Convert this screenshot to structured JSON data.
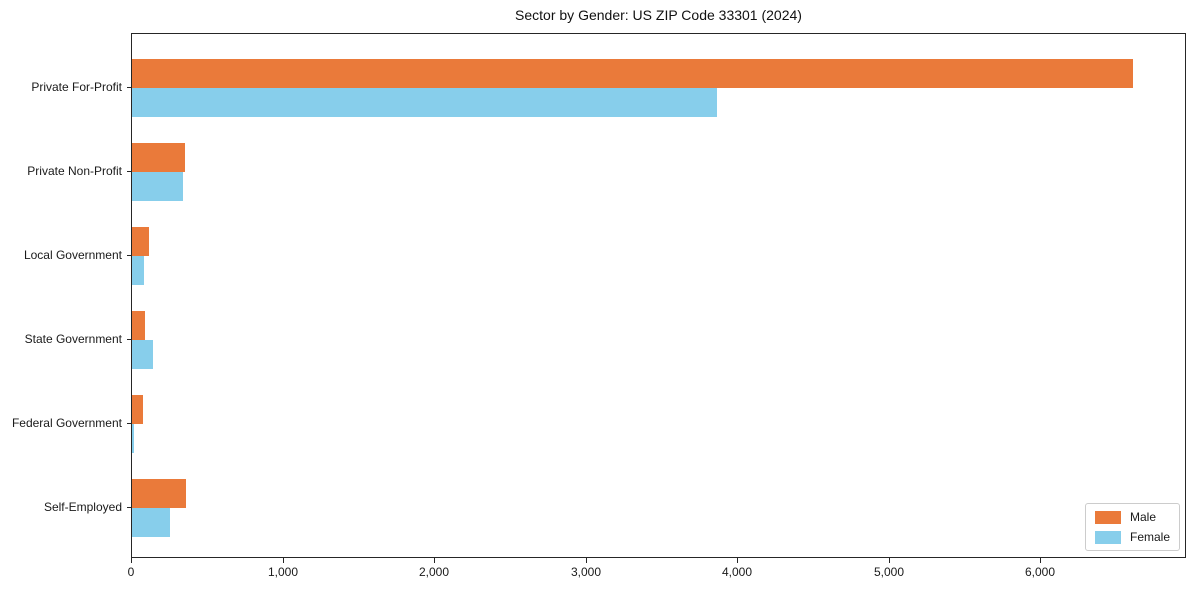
{
  "chart_data": {
    "type": "bar",
    "orientation": "horizontal",
    "title": "Sector by Gender: US ZIP Code 33301 (2024)",
    "xlabel": "",
    "ylabel": "",
    "categories": [
      "Private For-Profit",
      "Private Non-Profit",
      "Local Government",
      "State Government",
      "Federal Government",
      "Self-Employed"
    ],
    "series": [
      {
        "name": "Male",
        "color": "#ea7a3a",
        "values": [
          6610,
          350,
          110,
          85,
          70,
          355
        ]
      },
      {
        "name": "Female",
        "color": "#87ceeb",
        "values": [
          3860,
          335,
          80,
          140,
          15,
          250
        ]
      }
    ],
    "xlim": [
      0,
      6950
    ],
    "xticks": [
      0,
      1000,
      2000,
      3000,
      4000,
      5000,
      6000
    ],
    "xtick_labels": [
      "0",
      "1,000",
      "2,000",
      "3,000",
      "4,000",
      "5,000",
      "6,000"
    ],
    "legend_position": "lower right",
    "grid": false
  }
}
